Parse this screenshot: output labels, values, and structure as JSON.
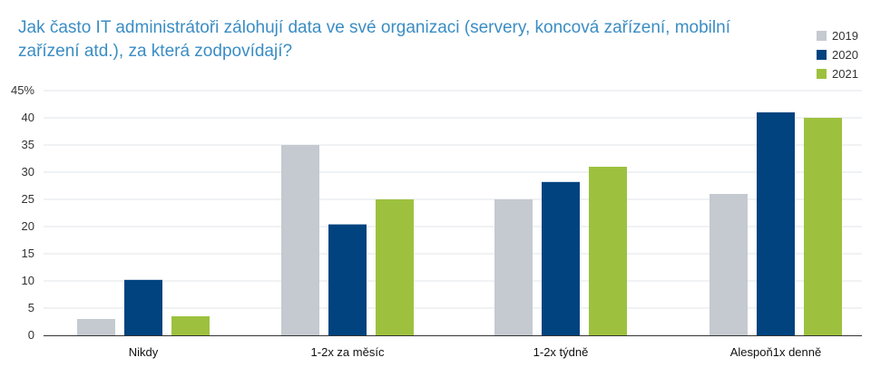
{
  "chart_data": {
    "type": "bar",
    "title": "Jak často IT administrátoři zálohují data ve své organizaci (servery, koncová zařízení, mobilní zařízení atd.), za která zodpovídají?",
    "categories": [
      "Nikdy",
      "1-2x za měsíc",
      "1-2x týdně",
      "Alespoň1x denně"
    ],
    "series": [
      {
        "name": "2019",
        "color": "#c5c9d0",
        "values": [
          3,
          35,
          25,
          26
        ]
      },
      {
        "name": "2020",
        "color": "#00437f",
        "values": [
          10.2,
          20.4,
          28.2,
          41
        ]
      },
      {
        "name": "2021",
        "color": "#9dc13e",
        "values": [
          3.5,
          25,
          31,
          40
        ]
      }
    ],
    "y_ticks": [
      {
        "value": 0,
        "label": "0"
      },
      {
        "value": 5,
        "label": "5"
      },
      {
        "value": 10,
        "label": "10"
      },
      {
        "value": 15,
        "label": "15"
      },
      {
        "value": 20,
        "label": "20"
      },
      {
        "value": 25,
        "label": "25"
      },
      {
        "value": 30,
        "label": "30"
      },
      {
        "value": 35,
        "label": "35"
      },
      {
        "value": 40,
        "label": "40"
      },
      {
        "value": 45,
        "label": "45%"
      }
    ],
    "ylim": [
      0,
      45
    ],
    "xlabel": "",
    "ylabel": "",
    "grid": true,
    "legend_position": "top-right"
  }
}
